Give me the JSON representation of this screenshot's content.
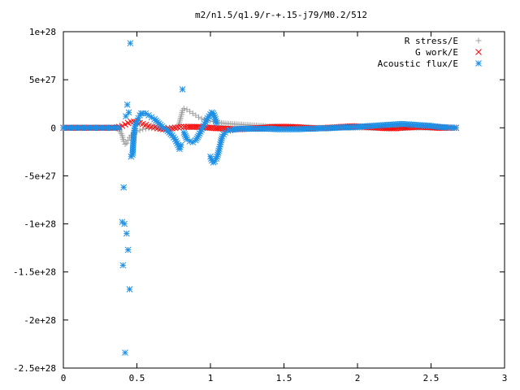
{
  "chart_data": {
    "type": "scatter",
    "title": "m2/n1.5/q1.9/r-+.15-j79/M0.2/512",
    "xlabel": "",
    "ylabel": "",
    "xlim": [
      0,
      3
    ],
    "ylim": [
      -2.5e+28,
      1e+28
    ],
    "x_ticks": [
      {
        "value": 0,
        "label": "0"
      },
      {
        "value": 0.5,
        "label": "0.5"
      },
      {
        "value": 1,
        "label": "1"
      },
      {
        "value": 1.5,
        "label": "1.5"
      },
      {
        "value": 2,
        "label": "2"
      },
      {
        "value": 2.5,
        "label": "2.5"
      },
      {
        "value": 3,
        "label": "3"
      }
    ],
    "y_ticks": [
      {
        "value": 1e+28,
        "label": "1e+28"
      },
      {
        "value": 5e+27,
        "label": "5e+27"
      },
      {
        "value": 0,
        "label": "0"
      },
      {
        "value": -5e+27,
        "label": "-5e+27"
      },
      {
        "value": -1e+28,
        "label": "-1e+28"
      },
      {
        "value": -1.5e+28,
        "label": "-1.5e+28"
      },
      {
        "value": -2e+28,
        "label": "-2e+28"
      },
      {
        "value": -2.5e+28,
        "label": "-2.5e+28"
      }
    ],
    "grid": false,
    "legend_position": "top-right",
    "series": [
      {
        "name": "R stress/E",
        "marker": "plus",
        "color": "#a0a0a0",
        "points": [
          [
            0.0,
            0
          ],
          [
            0.05,
            0
          ],
          [
            0.1,
            0
          ],
          [
            0.15,
            0
          ],
          [
            0.2,
            0
          ],
          [
            0.25,
            0
          ],
          [
            0.3,
            0
          ],
          [
            0.35,
            0
          ],
          [
            0.38,
            -2e+26
          ],
          [
            0.4,
            -8e+26
          ],
          [
            0.41,
            -1.4e+27
          ],
          [
            0.42,
            -1.7e+27
          ],
          [
            0.43,
            -1.6e+27
          ],
          [
            0.44,
            -1.3e+27
          ],
          [
            0.45,
            -1e+27
          ],
          [
            0.46,
            -8e+26
          ],
          [
            0.48,
            -6e+26
          ],
          [
            0.5,
            -4e+26
          ],
          [
            0.52,
            -2.5e+26
          ],
          [
            0.54,
            -1.5e+26
          ],
          [
            0.56,
            -1e+26
          ],
          [
            0.58,
            -5e+25
          ],
          [
            0.6,
            -2e+25
          ],
          [
            0.62,
            0
          ],
          [
            0.64,
            0
          ],
          [
            0.66,
            0
          ],
          [
            0.68,
            0
          ],
          [
            0.7,
            0
          ],
          [
            0.72,
            0
          ],
          [
            0.74,
            0
          ],
          [
            0.76,
            0
          ],
          [
            0.78,
            0
          ],
          [
            0.8,
            1.2e+27
          ],
          [
            0.81,
            1.8e+27
          ],
          [
            0.82,
            2e+27
          ],
          [
            0.84,
            1.9e+27
          ],
          [
            0.86,
            1.7e+27
          ],
          [
            0.88,
            1.5e+27
          ],
          [
            0.9,
            1.3e+27
          ],
          [
            0.92,
            1.1e+27
          ],
          [
            0.94,
            9.5e+26
          ],
          [
            0.96,
            8.5e+26
          ],
          [
            0.98,
            7.5e+26
          ],
          [
            1.0,
            7e+26
          ],
          [
            1.02,
            6.5e+26
          ],
          [
            1.05,
            5.5e+26
          ],
          [
            1.1,
            4.5e+26
          ],
          [
            1.15,
            4e+26
          ],
          [
            1.2,
            3.5e+26
          ],
          [
            1.25,
            3e+26
          ],
          [
            1.3,
            2.5e+26
          ],
          [
            1.35,
            2e+26
          ],
          [
            1.4,
            1.5e+26
          ],
          [
            1.45,
            1.2e+26
          ],
          [
            1.5,
            1e+26
          ],
          [
            1.6,
            5e+25
          ],
          [
            1.7,
            2e+25
          ],
          [
            1.8,
            0
          ],
          [
            1.9,
            0
          ],
          [
            2.0,
            0
          ],
          [
            2.1,
            0
          ],
          [
            2.2,
            0
          ],
          [
            2.3,
            0
          ],
          [
            2.4,
            0
          ],
          [
            2.5,
            0
          ],
          [
            2.6,
            0
          ],
          [
            2.67,
            0
          ]
        ]
      },
      {
        "name": "G work/E",
        "marker": "cross",
        "color": "#ff0000",
        "points": [
          [
            0.0,
            0
          ],
          [
            0.05,
            0
          ],
          [
            0.1,
            0
          ],
          [
            0.15,
            0
          ],
          [
            0.2,
            0
          ],
          [
            0.25,
            0
          ],
          [
            0.3,
            0
          ],
          [
            0.35,
            0
          ],
          [
            0.38,
            1e+26
          ],
          [
            0.4,
            2e+26
          ],
          [
            0.42,
            3.5e+26
          ],
          [
            0.44,
            5e+26
          ],
          [
            0.46,
            6e+26
          ],
          [
            0.48,
            6.5e+26
          ],
          [
            0.5,
            6e+26
          ],
          [
            0.52,
            5e+26
          ],
          [
            0.54,
            4e+26
          ],
          [
            0.56,
            3e+26
          ],
          [
            0.58,
            2e+26
          ],
          [
            0.6,
            1e+26
          ],
          [
            0.62,
            5e+25
          ],
          [
            0.64,
            -5e+25
          ],
          [
            0.66,
            -1e+26
          ],
          [
            0.68,
            -1.5e+26
          ],
          [
            0.7,
            -1.5e+26
          ],
          [
            0.72,
            -1e+26
          ],
          [
            0.74,
            -5e+25
          ],
          [
            0.76,
            0
          ],
          [
            0.78,
            5e+25
          ],
          [
            0.8,
            1e+26
          ],
          [
            0.82,
            1e+26
          ],
          [
            0.85,
            1e+26
          ],
          [
            0.9,
            1e+26
          ],
          [
            0.95,
            5e+25
          ],
          [
            1.0,
            0
          ],
          [
            1.05,
            -5e+25
          ],
          [
            1.1,
            -1e+26
          ],
          [
            1.15,
            -1.5e+26
          ],
          [
            1.2,
            -1.5e+26
          ],
          [
            1.25,
            -1e+26
          ],
          [
            1.3,
            -5e+25
          ],
          [
            1.35,
            0
          ],
          [
            1.4,
            5e+25
          ],
          [
            1.45,
            1e+26
          ],
          [
            1.5,
            1e+26
          ],
          [
            1.55,
            1e+26
          ],
          [
            1.6,
            5e+25
          ],
          [
            1.65,
            0
          ],
          [
            1.7,
            -5e+25
          ],
          [
            1.75,
            -5e+25
          ],
          [
            1.8,
            0
          ],
          [
            1.85,
            5e+25
          ],
          [
            1.9,
            1e+26
          ],
          [
            1.95,
            1.5e+26
          ],
          [
            2.0,
            1.5e+26
          ],
          [
            2.05,
            1e+26
          ],
          [
            2.1,
            5e+25
          ],
          [
            2.15,
            0
          ],
          [
            2.2,
            -5e+25
          ],
          [
            2.25,
            -5e+25
          ],
          [
            2.3,
            0
          ],
          [
            2.35,
            5e+25
          ],
          [
            2.4,
            1e+26
          ],
          [
            2.45,
            1e+26
          ],
          [
            2.5,
            5e+25
          ],
          [
            2.55,
            0
          ],
          [
            2.6,
            0
          ],
          [
            2.67,
            0
          ]
        ]
      },
      {
        "name": "Acoustic flux/E",
        "marker": "asterisk",
        "color": "#1e90e6",
        "points": [
          [
            0.0,
            0
          ],
          [
            0.03,
            0
          ],
          [
            0.06,
            0
          ],
          [
            0.09,
            0
          ],
          [
            0.12,
            0
          ],
          [
            0.15,
            0
          ],
          [
            0.18,
            0
          ],
          [
            0.21,
            0
          ],
          [
            0.24,
            0
          ],
          [
            0.27,
            0
          ],
          [
            0.3,
            0
          ],
          [
            0.33,
            0
          ],
          [
            0.36,
            0
          ],
          [
            0.38,
            0
          ],
          [
            0.4,
            -9.8e+27
          ],
          [
            0.405,
            -1.43e+28
          ],
          [
            0.41,
            -6.2e+27
          ],
          [
            0.415,
            -1e+28
          ],
          [
            0.42,
            -2.34e+28
          ],
          [
            0.425,
            1.2e+27
          ],
          [
            0.43,
            -1.1e+28
          ],
          [
            0.435,
            2.4e+27
          ],
          [
            0.44,
            -1.27e+28
          ],
          [
            0.445,
            1.6e+27
          ],
          [
            0.45,
            -1.68e+28
          ],
          [
            0.455,
            8.8e+27
          ],
          [
            0.46,
            -3e+27
          ],
          [
            0.47,
            -2.8e+27
          ],
          [
            0.48,
            -5e+26
          ],
          [
            0.49,
            4e+26
          ],
          [
            0.5,
            5e+26
          ],
          [
            0.51,
            1e+27
          ],
          [
            0.52,
            1.3e+27
          ],
          [
            0.53,
            1.5e+27
          ],
          [
            0.54,
            1.5e+27
          ],
          [
            0.56,
            1.5e+27
          ],
          [
            0.58,
            1.3e+27
          ],
          [
            0.6,
            1.1e+27
          ],
          [
            0.62,
            9e+26
          ],
          [
            0.64,
            6e+26
          ],
          [
            0.66,
            3e+26
          ],
          [
            0.68,
            0
          ],
          [
            0.7,
            -2e+26
          ],
          [
            0.72,
            -5e+26
          ],
          [
            0.74,
            -8e+26
          ],
          [
            0.76,
            -1.2e+27
          ],
          [
            0.78,
            -1.8e+27
          ],
          [
            0.79,
            -2.2e+27
          ],
          [
            0.8,
            -1.8e+27
          ],
          [
            0.81,
            4e+27
          ],
          [
            0.82,
            -5e+26
          ],
          [
            0.84,
            -1.2e+27
          ],
          [
            0.86,
            -1.4e+27
          ],
          [
            0.88,
            -1.5e+27
          ],
          [
            0.9,
            -1.3e+27
          ],
          [
            0.92,
            -8e+26
          ],
          [
            0.94,
            -2e+26
          ],
          [
            0.96,
            4e+26
          ],
          [
            0.98,
            1e+27
          ],
          [
            1.0,
            1.4e+27
          ],
          [
            1.01,
            1.6e+27
          ],
          [
            1.02,
            1.5e+27
          ],
          [
            1.03,
            1.1e+27
          ],
          [
            1.04,
            5e+26
          ],
          [
            1.0,
            -3e+27
          ],
          [
            1.01,
            -3.4e+27
          ],
          [
            1.02,
            -3.6e+27
          ],
          [
            1.03,
            -3.5e+27
          ],
          [
            1.04,
            -3.2e+27
          ],
          [
            1.05,
            -2.8e+27
          ],
          [
            1.06,
            -2.2e+27
          ],
          [
            1.07,
            -1.5e+27
          ],
          [
            1.08,
            -9e+26
          ],
          [
            1.1,
            -5e+26
          ],
          [
            1.12,
            -3e+26
          ],
          [
            1.15,
            -2e+26
          ],
          [
            1.2,
            -1e+26
          ],
          [
            1.25,
            -1e+26
          ],
          [
            1.3,
            -1e+26
          ],
          [
            1.35,
            -1e+26
          ],
          [
            1.4,
            -1e+26
          ],
          [
            1.45,
            -1.5e+26
          ],
          [
            1.5,
            -1.5e+26
          ],
          [
            1.55,
            -1.5e+26
          ],
          [
            1.6,
            -1.5e+26
          ],
          [
            1.65,
            -1e+26
          ],
          [
            1.7,
            -1e+26
          ],
          [
            1.75,
            -5e+25
          ],
          [
            1.8,
            -5e+25
          ],
          [
            1.85,
            0
          ],
          [
            1.9,
            5e+25
          ],
          [
            1.95,
            5e+25
          ],
          [
            2.0,
            1e+26
          ],
          [
            2.05,
            1.5e+26
          ],
          [
            2.1,
            2e+26
          ],
          [
            2.15,
            2.5e+26
          ],
          [
            2.2,
            3e+26
          ],
          [
            2.25,
            3.5e+26
          ],
          [
            2.3,
            4e+26
          ],
          [
            2.35,
            3.5e+26
          ],
          [
            2.4,
            3e+26
          ],
          [
            2.45,
            2.5e+26
          ],
          [
            2.5,
            2e+26
          ],
          [
            2.55,
            1e+26
          ],
          [
            2.6,
            5e+25
          ],
          [
            2.67,
            0
          ]
        ]
      }
    ]
  }
}
